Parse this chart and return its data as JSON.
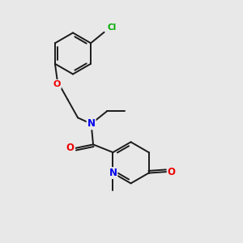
{
  "background_color": "#e8e8e8",
  "bond_color": "#1a1a1a",
  "atom_colors": {
    "N": "#0000ee",
    "O": "#ee0000",
    "Cl": "#00aa00",
    "C": "#1a1a1a"
  },
  "figsize": [
    3.0,
    3.0
  ],
  "dpi": 100,
  "lw": 1.4,
  "fontsize": 7.5
}
